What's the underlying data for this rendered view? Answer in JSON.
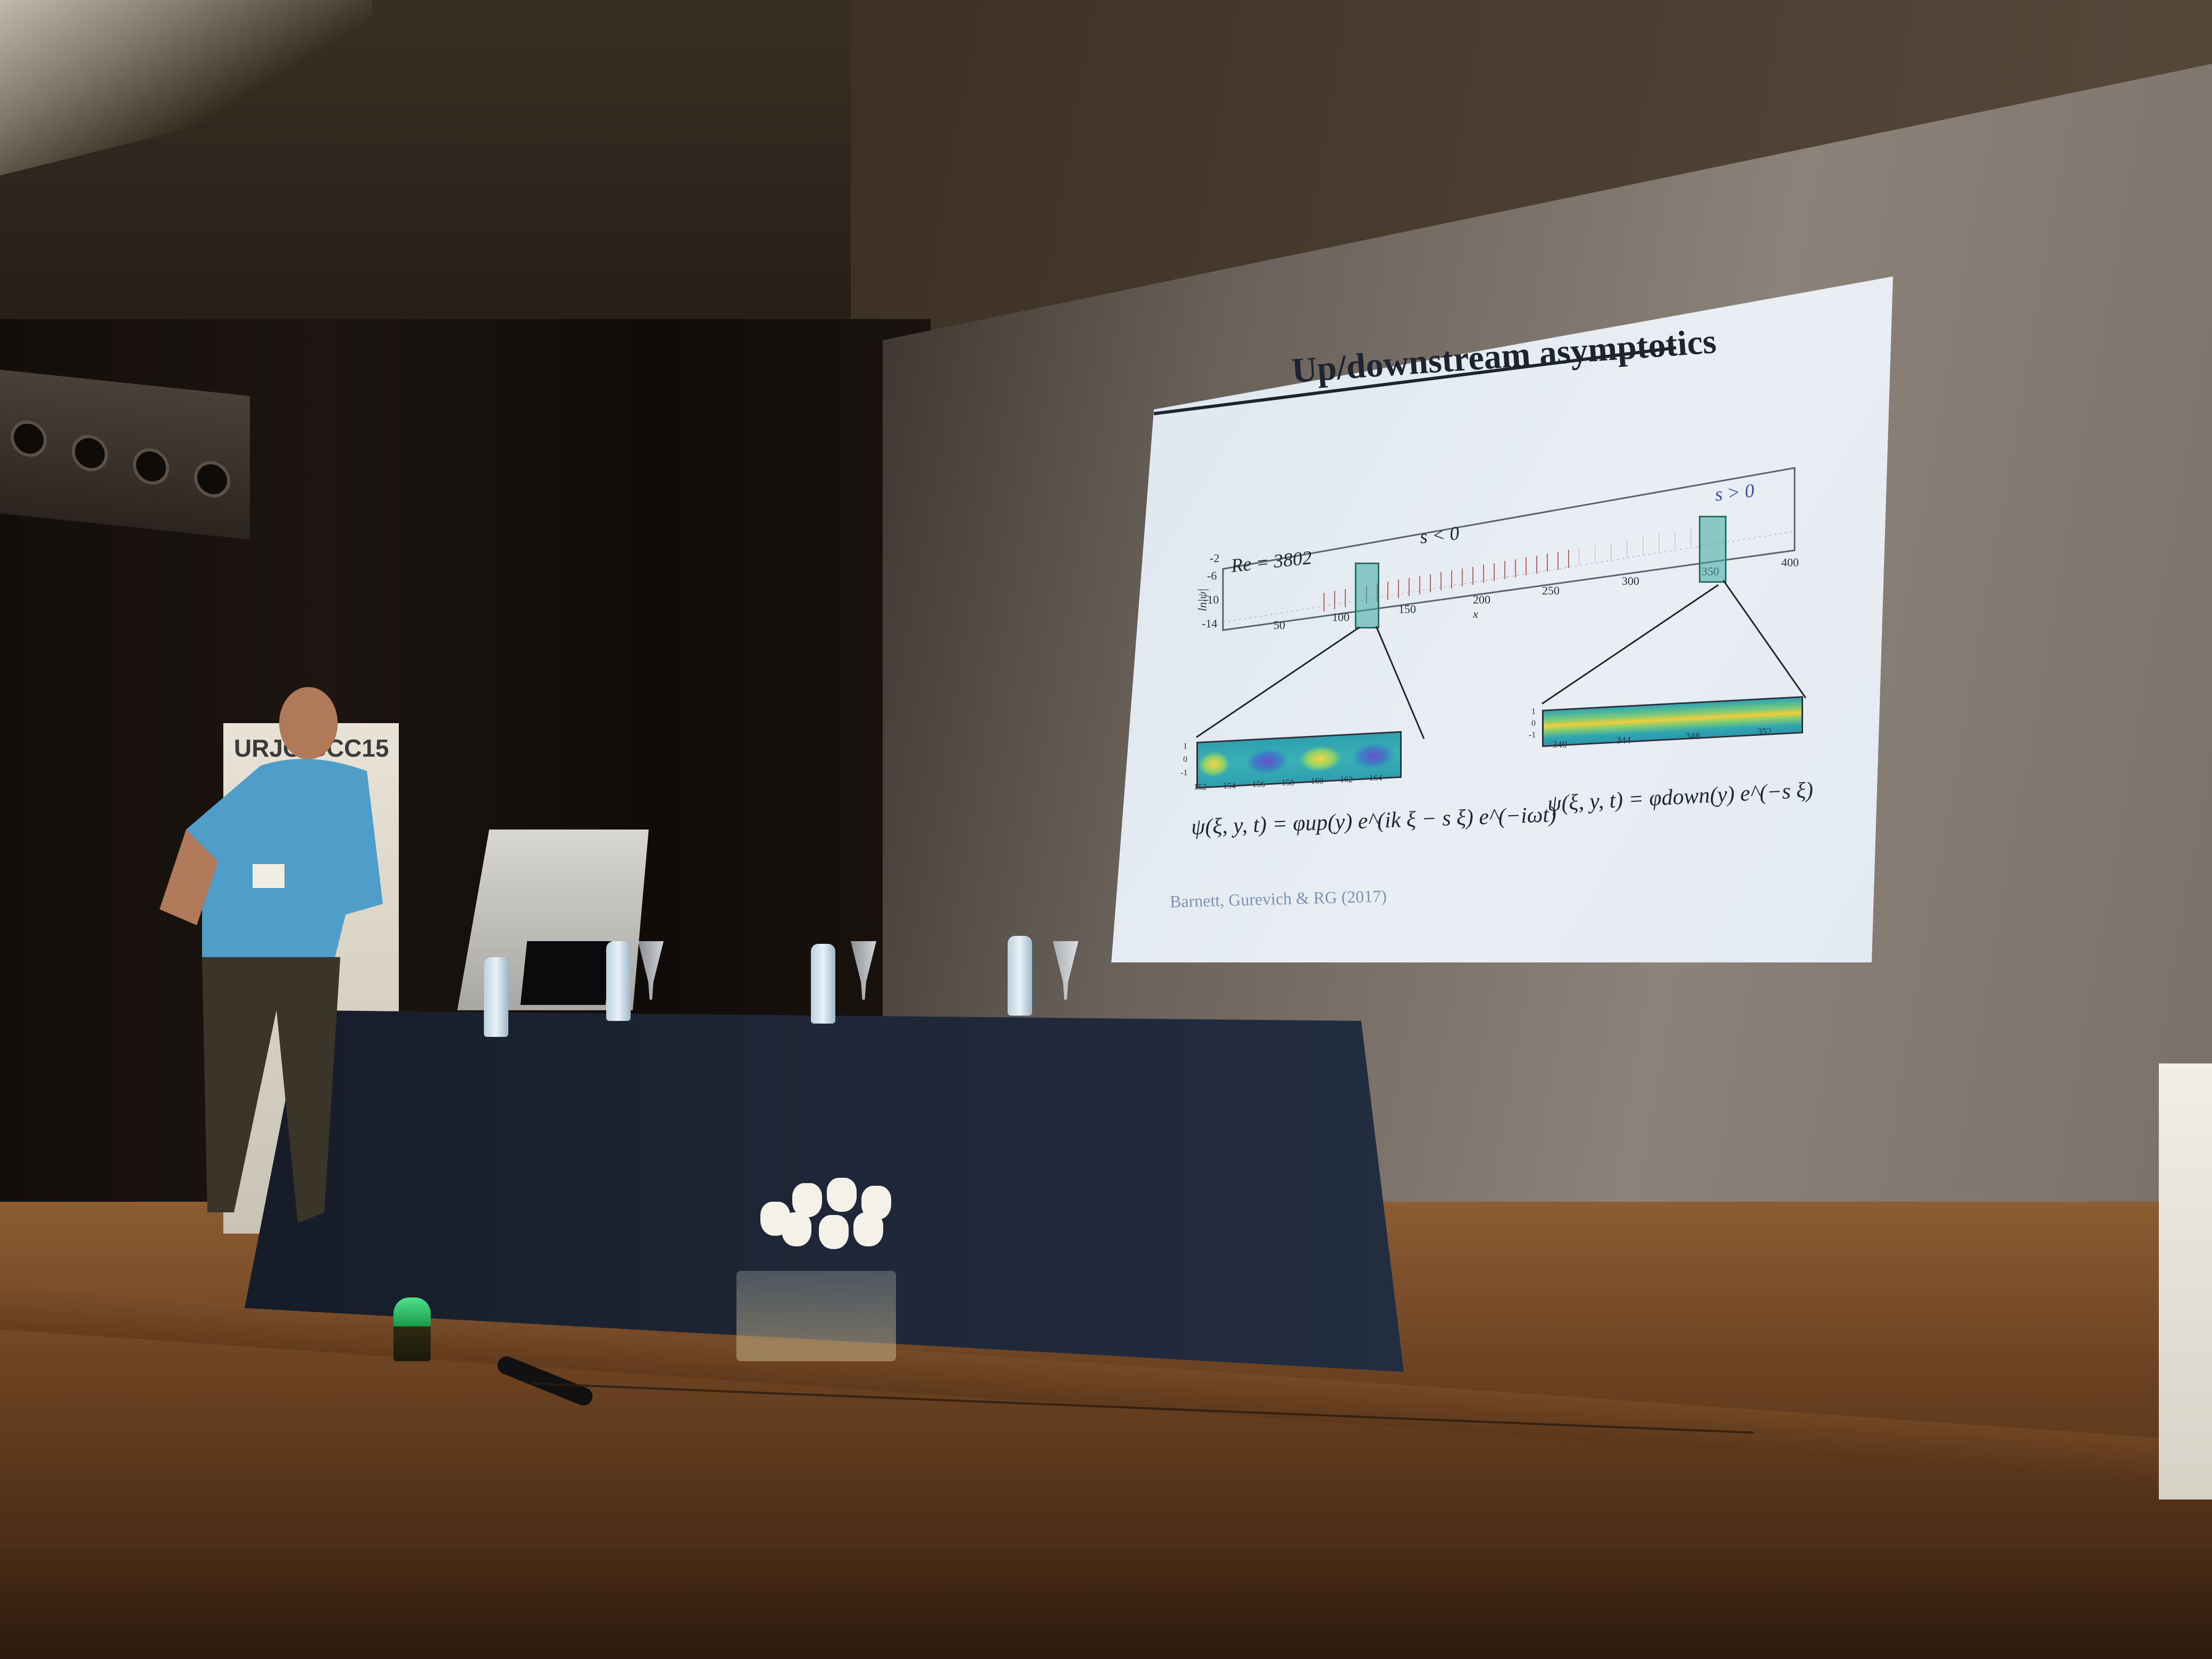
{
  "slide": {
    "title": "Up/downstream asymptotics",
    "plot": {
      "re_label": "Re = 3802",
      "s_neg_label": "s < 0",
      "s_pos_label": "s > 0",
      "y_axis_label": "ln|ψ|",
      "x_axis_label": "x",
      "x_ticks": [
        "50",
        "100",
        "150",
        "200",
        "250",
        "300",
        "350",
        "400"
      ],
      "y_ticks": [
        "-2",
        "-6",
        "-10",
        "-14"
      ]
    },
    "left_zoom": {
      "x_ticks": [
        "152",
        "154",
        "156",
        "158",
        "160",
        "162",
        "164"
      ],
      "y_ticks": [
        "1",
        "0",
        "-1"
      ],
      "equation": "ψ(ξ, y, t) = φup(y) e^(ik ξ − s ξ) e^(−iωt)"
    },
    "right_zoom": {
      "x_ticks": [
        "340",
        "344",
        "348",
        "352"
      ],
      "y_ticks": [
        "1",
        "0",
        "-1"
      ],
      "equation": "ψ(ξ, y, t) = φdown(y) e^(−s ξ)"
    },
    "citation": "Barnett, Gurevich & RG (2017)"
  },
  "banner": {
    "text": "URJC GCC15"
  }
}
